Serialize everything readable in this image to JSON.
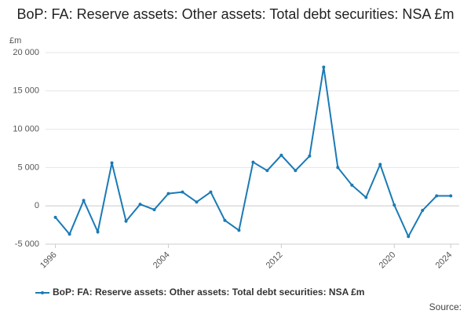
{
  "chart_data": {
    "type": "line",
    "title": "BoP: FA: Reserve assets: Other assets: Total debt securities: NSA £m",
    "y_label": "£m",
    "source": "Source:",
    "x": [
      1996,
      1997,
      1998,
      1999,
      2000,
      2001,
      2002,
      2003,
      2004,
      2005,
      2006,
      2007,
      2008,
      2009,
      2010,
      2011,
      2012,
      2013,
      2014,
      2015,
      2016,
      2017,
      2018,
      2019,
      2020,
      2021,
      2022,
      2023,
      2024
    ],
    "series": [
      {
        "name": "BoP: FA: Reserve assets: Other assets: Total debt securities: NSA £m",
        "color": "#1a7ab5",
        "values": [
          -1500,
          -3700,
          700,
          -3400,
          5600,
          -2000,
          200,
          -500,
          1600,
          1800,
          500,
          1800,
          -1900,
          -3200,
          5700,
          4600,
          6600,
          4600,
          6500,
          18100,
          5000,
          2700,
          1100,
          5400,
          100,
          -4000,
          -600,
          1300,
          1300
        ]
      }
    ],
    "xlim": [
      1995.3,
      2024.6
    ],
    "xticks": [
      1996,
      2004,
      2012,
      2020,
      2024
    ],
    "ylim": [
      -5000,
      20000
    ],
    "yticks": [
      {
        "value": -5000,
        "label": "-5 000"
      },
      0,
      {
        "value": 5000,
        "label": "5 000"
      },
      {
        "value": 10000,
        "label": "10 000"
      },
      {
        "value": 15000,
        "label": "15 000"
      },
      {
        "value": 20000,
        "label": "20 000"
      }
    ],
    "grid": true
  }
}
